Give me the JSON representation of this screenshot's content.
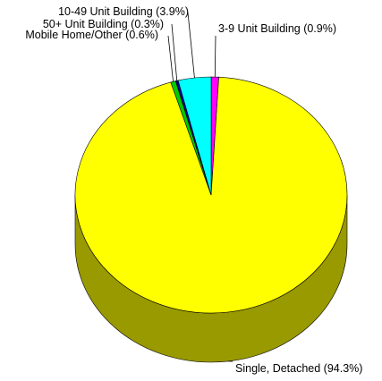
{
  "chart_data": {
    "type": "pie",
    "style": "3d",
    "start": "12 o'clock, clockwise",
    "categories": [
      "3-9 Unit Building",
      "Single, Detached",
      "Mobile Home/Other",
      "50+ Unit Building",
      "10-49 Unit Building"
    ],
    "values": [
      0.9,
      94.3,
      0.6,
      0.3,
      3.9
    ],
    "labels": [
      "3-9 Unit Building (0.9%)",
      "Single, Detached (94.3%)",
      "Mobile Home/Other (0.6%)",
      "50+ Unit Building (0.3%)",
      "10-49 Unit Building (3.9%)"
    ],
    "colors": [
      "#ff00ff",
      "#ffff00",
      "#00cc00",
      "#000099",
      "#00ffff"
    ],
    "side_colors": [
      "#990099",
      "#999900",
      "#007a00",
      "#00005c",
      "#009999"
    ],
    "title": "",
    "legend": "none"
  }
}
